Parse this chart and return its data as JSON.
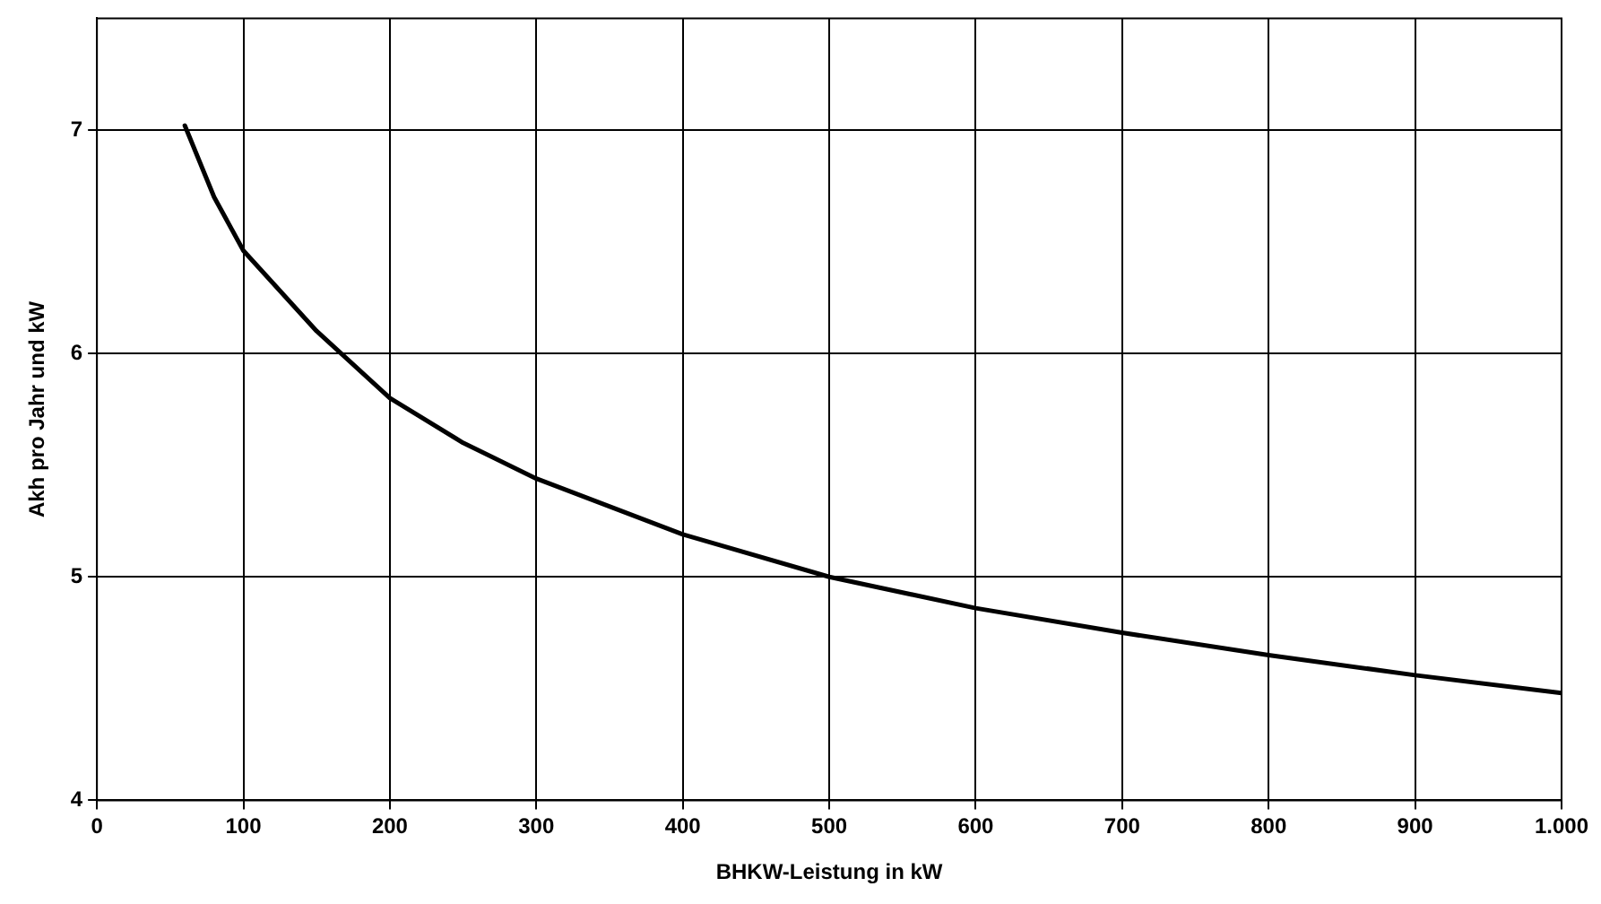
{
  "chart_data": {
    "type": "line",
    "xlabel": "BHKW-Leistung in kW",
    "ylabel": "Akh pro Jahr und kW",
    "x": [
      60,
      80,
      100,
      150,
      200,
      250,
      300,
      400,
      500,
      600,
      700,
      800,
      900,
      1000
    ],
    "series": [
      {
        "color": "#000000",
        "values": [
          7.02,
          6.7,
          6.46,
          6.1,
          5.8,
          5.6,
          5.44,
          5.19,
          5.0,
          4.86,
          4.75,
          4.65,
          4.56,
          4.48
        ]
      }
    ],
    "xlim": [
      0,
      1000
    ],
    "xticks": [
      0,
      100,
      200,
      300,
      400,
      500,
      600,
      700,
      800,
      900,
      {
        "value": 1000,
        "label": "1.000"
      }
    ],
    "ylim": [
      4,
      7.5
    ],
    "yticks": [
      4,
      5,
      6,
      7
    ],
    "grid": true,
    "legend": false,
    "marker": "none",
    "line_style": "solid"
  }
}
